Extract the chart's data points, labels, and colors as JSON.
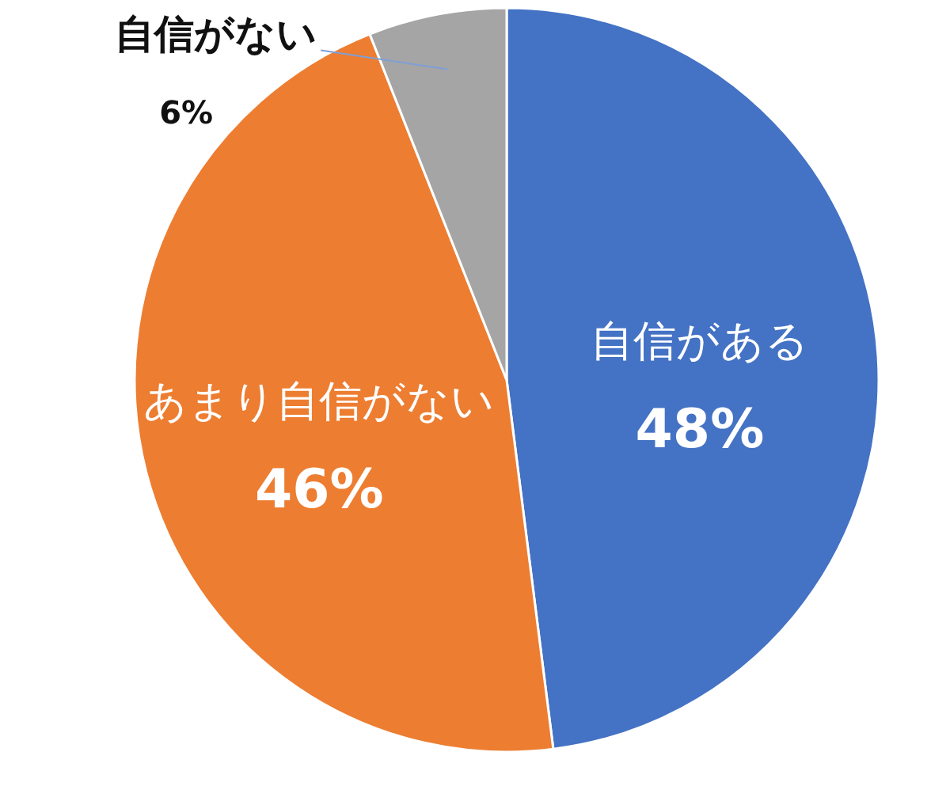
{
  "chart_data": {
    "type": "pie",
    "categories": [
      "自信がある",
      "あまり自信がない",
      "自信がない"
    ],
    "values": [
      48,
      46,
      6
    ],
    "colors": [
      "#4472c4",
      "#ed7d31",
      "#a5a5a5"
    ],
    "value_labels": [
      "48%",
      "46%",
      "6%"
    ]
  }
}
